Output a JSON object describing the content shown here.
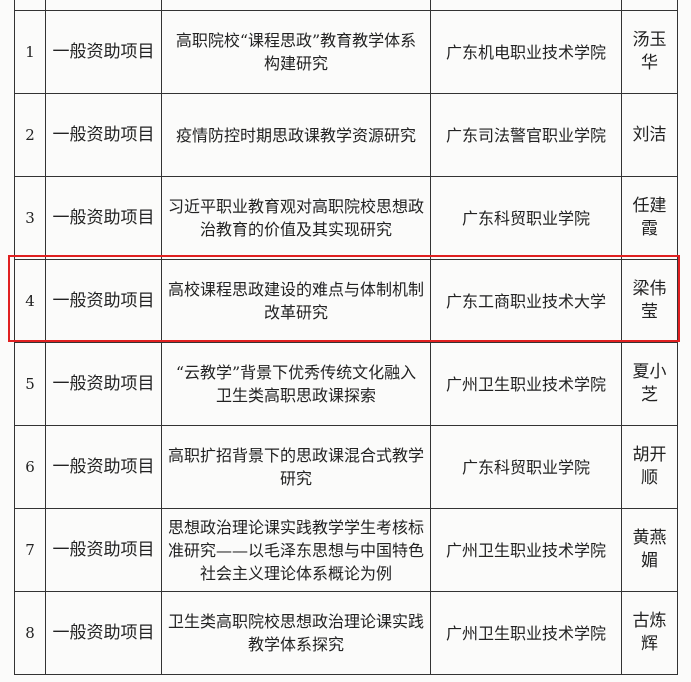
{
  "table": {
    "rows": [
      {
        "no": "1",
        "type": "一般资助项目",
        "title": "高职院校“课程思政”教育教学体系构建研究",
        "institution": "广东机电职业技术学院",
        "leader": "汤玉华"
      },
      {
        "no": "2",
        "type": "一般资助项目",
        "title": "疫情防控时期思政课教学资源研究",
        "institution": "广东司法警官职业学院",
        "leader": "刘洁"
      },
      {
        "no": "3",
        "type": "一般资助项目",
        "title": "习近平职业教育观对高职院校思想政治教育的价值及其实现研究",
        "institution": "广东科贸职业学院",
        "leader": "任建霞"
      },
      {
        "no": "4",
        "type": "一般资助项目",
        "title": "高校课程思政建设的难点与体制机制改革研究",
        "institution": "广东工商职业技术大学",
        "leader": "梁伟莹"
      },
      {
        "no": "5",
        "type": "一般资助项目",
        "title": "“云教学”背景下优秀传统文化融入卫生类高职思政课探索",
        "institution": "广州卫生职业技术学院",
        "leader": "夏小芝"
      },
      {
        "no": "6",
        "type": "一般资助项目",
        "title": "高职扩招背景下的思政课混合式教学研究",
        "institution": "广东科贸职业学院",
        "leader": "胡开顺"
      },
      {
        "no": "7",
        "type": "一般资助项目",
        "title": "思想政治理论课实践教学学生考核标准研究——以毛泽东思想与中国特色社会主义理论体系概论为例",
        "institution": "广州卫生职业技术学院",
        "leader": "黄燕媚"
      },
      {
        "no": "8",
        "type": "一般资助项目",
        "title": "卫生类高职院校思想政治理论课实践教学体系探究",
        "institution": "广州卫生职业技术学院",
        "leader": "古炼辉"
      }
    ],
    "highlighted_row": 4,
    "highlight_color": "#e02020"
  }
}
